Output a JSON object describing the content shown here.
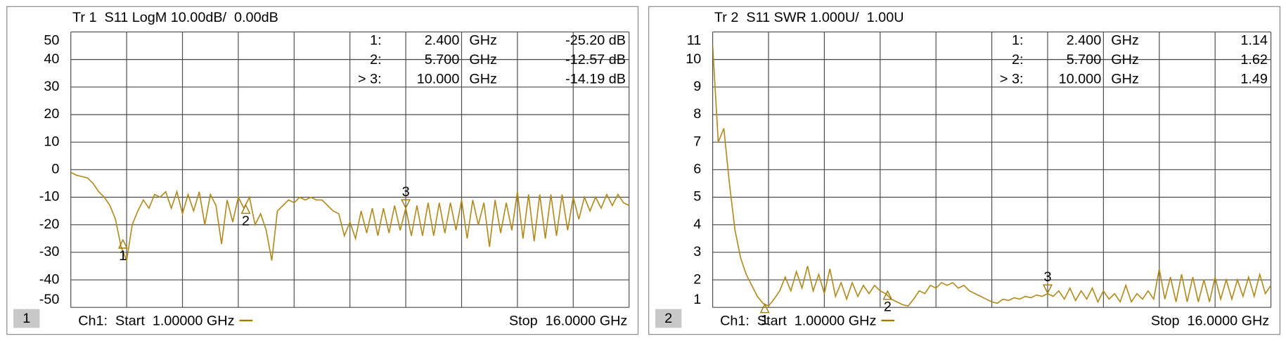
{
  "chart_data": [
    {
      "type": "line",
      "title": "Tr 1  S11 LogM 10.00dB/  0.00dB",
      "panel": "1",
      "start_label": "Ch1:  Start  1.00000 GHz",
      "stop_label": "Stop  16.0000 GHz",
      "xlim": [
        1,
        16
      ],
      "xticks": [
        1,
        2.5,
        4,
        5.5,
        7,
        8.5,
        10,
        11.5,
        13,
        14.5,
        16
      ],
      "ylim": [
        -50,
        50
      ],
      "yticks": [
        50,
        40,
        30,
        20,
        10,
        0,
        -10,
        -20,
        -30,
        -40,
        -50
      ],
      "grid": true,
      "markers": [
        {
          "name": "1:",
          "x": 2.4,
          "x_label": "2.400",
          "unit": "GHz",
          "y": -25.2,
          "y_label": "-25.20 dB",
          "tag": "1",
          "active": false
        },
        {
          "name": "2:",
          "x": 5.7,
          "x_label": "5.700",
          "unit": "GHz",
          "y": -12.57,
          "y_label": "-12.57 dB",
          "tag": "2",
          "active": false
        },
        {
          "name": "> 3:",
          "x": 10,
          "x_label": "10.000",
          "unit": "GHz",
          "y": -14.19,
          "y_label": "-14.19 dB",
          "tag": "3",
          "active": true
        }
      ],
      "x": [
        1,
        1.15,
        1.3,
        1.45,
        1.6,
        1.75,
        1.9,
        2.05,
        2.2,
        2.35,
        2.5,
        2.65,
        2.8,
        2.95,
        3.1,
        3.25,
        3.4,
        3.55,
        3.7,
        3.85,
        4,
        4.15,
        4.3,
        4.45,
        4.6,
        4.75,
        4.9,
        5.05,
        5.2,
        5.35,
        5.5,
        5.65,
        5.8,
        5.95,
        6.1,
        6.25,
        6.4,
        6.55,
        6.7,
        6.85,
        7,
        7.15,
        7.3,
        7.45,
        7.6,
        7.75,
        7.9,
        8.05,
        8.2,
        8.35,
        8.5,
        8.65,
        8.8,
        8.95,
        9.1,
        9.25,
        9.4,
        9.55,
        9.7,
        9.85,
        10,
        10.15,
        10.3,
        10.45,
        10.6,
        10.75,
        10.9,
        11.05,
        11.2,
        11.35,
        11.5,
        11.65,
        11.8,
        11.95,
        12.1,
        12.25,
        12.4,
        12.55,
        12.7,
        12.85,
        13,
        13.15,
        13.3,
        13.45,
        13.6,
        13.75,
        13.9,
        14.05,
        14.2,
        14.35,
        14.5,
        14.65,
        14.8,
        14.95,
        15.1,
        15.25,
        15.4,
        15.55,
        15.7,
        15.85,
        16
      ],
      "series": [
        {
          "color": "#b08a1e",
          "values": [
            -1,
            -2,
            -2.5,
            -3,
            -5,
            -8,
            -10,
            -13,
            -18,
            -28,
            -33,
            -20,
            -15,
            -11,
            -14,
            -9,
            -10,
            -8,
            -14,
            -8,
            -16,
            -9,
            -15,
            -8,
            -20,
            -9,
            -13,
            -27,
            -11,
            -19,
            -10,
            -14,
            -10,
            -20,
            -16,
            -22,
            -33,
            -15,
            -13,
            -11,
            -12,
            -10,
            -11,
            -10,
            -11,
            -11,
            -13,
            -15,
            -16,
            -24,
            -19,
            -25,
            -15,
            -23,
            -14,
            -24,
            -14,
            -23,
            -13,
            -22,
            -14,
            -24,
            -13,
            -24,
            -12,
            -24,
            -12,
            -23,
            -12,
            -22,
            -11,
            -25,
            -11,
            -20,
            -12,
            -28,
            -11,
            -23,
            -12,
            -22,
            -8,
            -25,
            -9,
            -26,
            -9,
            -25,
            -9,
            -24,
            -9,
            -22,
            -10,
            -18,
            -10,
            -15,
            -10,
            -14,
            -9,
            -13,
            -9,
            -12,
            -13
          ]
        }
      ]
    },
    {
      "type": "line",
      "title": "Tr 2  S11 SWR 1.000U/  1.00U",
      "panel": "2",
      "start_label": "Ch1:  Start  1.00000 GHz",
      "stop_label": "Stop  16.0000 GHz",
      "xlim": [
        1,
        16
      ],
      "xticks": [
        1,
        2.5,
        4,
        5.5,
        7,
        8.5,
        10,
        11.5,
        13,
        14.5,
        16
      ],
      "ylim": [
        1,
        11
      ],
      "yticks": [
        11,
        10,
        9,
        8,
        7,
        6,
        5,
        4,
        3,
        2,
        1
      ],
      "grid": true,
      "markers": [
        {
          "name": "1:",
          "x": 2.4,
          "x_label": "2.400",
          "unit": "GHz",
          "y": 1.14,
          "y_label": "1.14",
          "tag": "1",
          "active": false
        },
        {
          "name": "2:",
          "x": 5.7,
          "x_label": "5.700",
          "unit": "GHz",
          "y": 1.62,
          "y_label": "1.62",
          "tag": "2",
          "active": false
        },
        {
          "name": "> 3:",
          "x": 10,
          "x_label": "10.000",
          "unit": "GHz",
          "y": 1.49,
          "y_label": "1.49",
          "tag": "3",
          "active": true
        }
      ],
      "x": [
        1,
        1.15,
        1.3,
        1.45,
        1.6,
        1.75,
        1.9,
        2.05,
        2.2,
        2.35,
        2.5,
        2.65,
        2.8,
        2.95,
        3.1,
        3.25,
        3.4,
        3.55,
        3.7,
        3.85,
        4,
        4.15,
        4.3,
        4.45,
        4.6,
        4.75,
        4.9,
        5.05,
        5.2,
        5.35,
        5.5,
        5.65,
        5.8,
        5.95,
        6.1,
        6.25,
        6.4,
        6.55,
        6.7,
        6.85,
        7,
        7.15,
        7.3,
        7.45,
        7.6,
        7.75,
        7.9,
        8.05,
        8.2,
        8.35,
        8.5,
        8.65,
        8.8,
        8.95,
        9.1,
        9.25,
        9.4,
        9.55,
        9.7,
        9.85,
        10,
        10.15,
        10.3,
        10.45,
        10.6,
        10.75,
        10.9,
        11.05,
        11.2,
        11.35,
        11.5,
        11.65,
        11.8,
        11.95,
        12.1,
        12.25,
        12.4,
        12.55,
        12.7,
        12.85,
        13,
        13.15,
        13.3,
        13.45,
        13.6,
        13.75,
        13.9,
        14.05,
        14.2,
        14.35,
        14.5,
        14.65,
        14.8,
        14.95,
        15.1,
        15.25,
        15.4,
        15.55,
        15.7,
        15.85,
        16
      ],
      "series": [
        {
          "color": "#b08a1e",
          "values": [
            10.5,
            7,
            7.5,
            5.5,
            3.8,
            2.8,
            2.2,
            1.8,
            1.4,
            1.15,
            1.05,
            1.3,
            1.6,
            2.1,
            1.6,
            2.3,
            1.7,
            2.5,
            1.6,
            2.2,
            1.5,
            2.4,
            1.4,
            1.9,
            1.3,
            1.9,
            1.4,
            1.8,
            1.5,
            1.8,
            1.6,
            1.5,
            1.3,
            1.2,
            1.1,
            1.05,
            1.3,
            1.6,
            1.5,
            1.8,
            1.7,
            1.9,
            1.8,
            1.9,
            1.7,
            1.8,
            1.6,
            1.5,
            1.4,
            1.3,
            1.2,
            1.15,
            1.3,
            1.25,
            1.35,
            1.3,
            1.4,
            1.35,
            1.45,
            1.4,
            1.5,
            1.4,
            1.6,
            1.3,
            1.7,
            1.25,
            1.6,
            1.3,
            1.7,
            1.2,
            1.6,
            1.3,
            1.5,
            1.2,
            1.8,
            1.2,
            1.5,
            1.3,
            1.6,
            1.3,
            2.4,
            1.3,
            2.1,
            1.2,
            2.2,
            1.2,
            2.1,
            1.2,
            2.0,
            1.2,
            2.1,
            1.3,
            2.0,
            1.3,
            2.0,
            1.4,
            2.1,
            1.4,
            2.2,
            1.5,
            1.8
          ]
        }
      ]
    }
  ]
}
